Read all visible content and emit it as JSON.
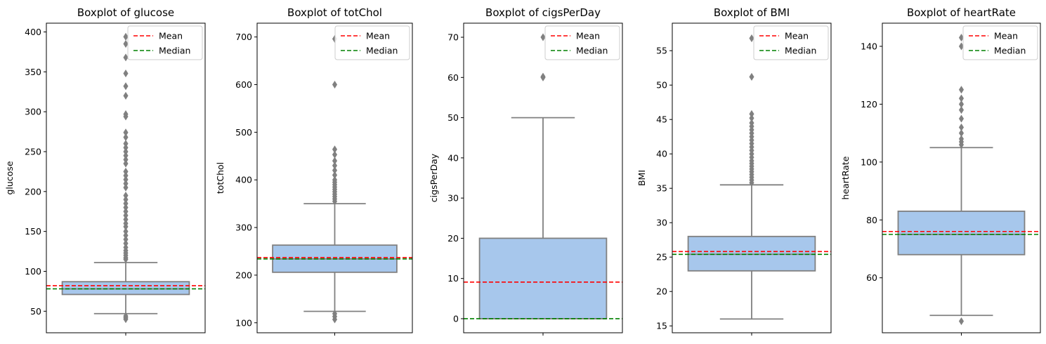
{
  "chart_data": [
    {
      "type": "box",
      "title": "Boxplot of glucose",
      "ylabel": "glucose",
      "ylim": [
        23,
        411
      ],
      "yticks": [
        50,
        100,
        150,
        200,
        250,
        300,
        350,
        400
      ],
      "box": {
        "whislo": 47,
        "q1": 71,
        "median": 78,
        "q3": 87,
        "whishi": 111
      },
      "mean": 82,
      "outliers": [
        40,
        42,
        44,
        115,
        117,
        120,
        123,
        126,
        130,
        135,
        140,
        145,
        150,
        156,
        160,
        165,
        170,
        175,
        180,
        185,
        190,
        195,
        205,
        210,
        215,
        220,
        225,
        235,
        240,
        245,
        250,
        255,
        260,
        268,
        274,
        294,
        297,
        320,
        332,
        348,
        368,
        385,
        394
      ],
      "legend": {
        "position": "upper right",
        "entries": [
          {
            "label": "Mean",
            "color": "#ff0000"
          },
          {
            "label": "Median",
            "color": "#008000"
          }
        ]
      }
    },
    {
      "type": "box",
      "title": "Boxplot of totChol",
      "ylabel": "totChol",
      "ylim": [
        79,
        729
      ],
      "yticks": [
        100,
        200,
        300,
        400,
        500,
        600,
        700
      ],
      "box": {
        "whislo": 124,
        "q1": 206,
        "median": 234,
        "q3": 263,
        "whishi": 350
      },
      "mean": 237,
      "outliers": [
        107,
        113,
        119,
        355,
        360,
        365,
        370,
        375,
        380,
        385,
        390,
        395,
        400,
        410,
        420,
        430,
        440,
        453,
        464,
        600,
        696
      ],
      "legend": {
        "position": "upper right",
        "entries": [
          {
            "label": "Mean",
            "color": "#ff0000"
          },
          {
            "label": "Median",
            "color": "#008000"
          }
        ]
      }
    },
    {
      "type": "box",
      "title": "Boxplot of cigsPerDay",
      "ylabel": "cigsPerDay",
      "ylim": [
        -3.5,
        73.5
      ],
      "yticks": [
        0,
        10,
        20,
        30,
        40,
        50,
        60,
        70
      ],
      "box": {
        "whislo": 0,
        "q1": 0,
        "median": 0,
        "q3": 20,
        "whishi": 50
      },
      "mean": 9.1,
      "outliers": [
        60,
        60.2,
        70
      ],
      "legend": {
        "position": "upper right",
        "entries": [
          {
            "label": "Mean",
            "color": "#ff0000"
          },
          {
            "label": "Median",
            "color": "#008000"
          }
        ]
      }
    },
    {
      "type": "box",
      "title": "Boxplot of BMI",
      "ylabel": "BMI",
      "ylim": [
        14,
        59
      ],
      "yticks": [
        15,
        20,
        25,
        30,
        35,
        40,
        45,
        50,
        55
      ],
      "box": {
        "whislo": 16,
        "q1": 23,
        "median": 25.4,
        "q3": 28,
        "whishi": 35.5
      },
      "mean": 25.8,
      "outliers": [
        35.8,
        36.2,
        36.6,
        37,
        37.4,
        37.8,
        38.2,
        38.6,
        39,
        39.5,
        40,
        40.5,
        41,
        41.5,
        42,
        42.5,
        43,
        43.5,
        44,
        44.5,
        45.2,
        45.8,
        51.2,
        56.8
      ],
      "legend": {
        "position": "upper right",
        "entries": [
          {
            "label": "Mean",
            "color": "#ff0000"
          },
          {
            "label": "Median",
            "color": "#008000"
          }
        ]
      }
    },
    {
      "type": "box",
      "title": "Boxplot of heartRate",
      "ylabel": "heartRate",
      "ylim": [
        41,
        148
      ],
      "yticks": [
        60,
        80,
        100,
        120,
        140
      ],
      "box": {
        "whislo": 47,
        "q1": 68,
        "median": 75,
        "q3": 83,
        "whishi": 105
      },
      "mean": 76,
      "outliers": [
        45,
        106,
        107,
        108,
        110,
        112,
        115,
        118,
        120,
        122,
        125,
        140,
        143
      ],
      "legend": {
        "position": "upper right",
        "entries": [
          {
            "label": "Mean",
            "color": "#ff0000"
          },
          {
            "label": "Median",
            "color": "#008000"
          }
        ]
      }
    }
  ],
  "colors": {
    "box_fill": "#a7c7ec",
    "box_edge": "#808080",
    "mean_line": "#ff0000",
    "median_line": "#008000"
  }
}
